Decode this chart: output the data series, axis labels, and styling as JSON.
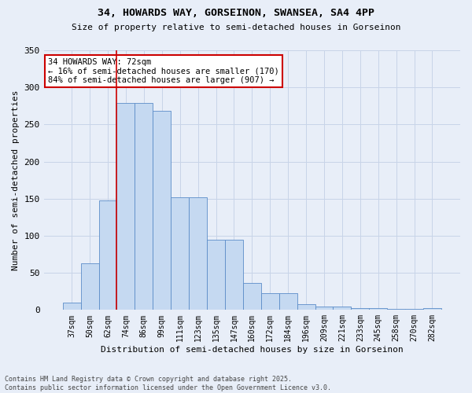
{
  "title1": "34, HOWARDS WAY, GORSEINON, SWANSEA, SA4 4PP",
  "title2": "Size of property relative to semi-detached houses in Gorseinon",
  "xlabel": "Distribution of semi-detached houses by size in Gorseinon",
  "ylabel": "Number of semi-detached properties",
  "categories": [
    "37sqm",
    "50sqm",
    "62sqm",
    "74sqm",
    "86sqm",
    "99sqm",
    "111sqm",
    "123sqm",
    "135sqm",
    "147sqm",
    "160sqm",
    "172sqm",
    "184sqm",
    "196sqm",
    "209sqm",
    "221sqm",
    "233sqm",
    "245sqm",
    "258sqm",
    "270sqm",
    "282sqm"
  ],
  "values": [
    10,
    63,
    148,
    279,
    279,
    268,
    152,
    152,
    95,
    95,
    36,
    23,
    23,
    8,
    5,
    5,
    3,
    3,
    1,
    1,
    2
  ],
  "bar_color": "#c5d9f1",
  "bar_edge_color": "#5b8cc8",
  "grid_color": "#c8d4e8",
  "background_color": "#e8eef8",
  "vline_color": "#cc0000",
  "vline_pos": 2.5,
  "annotation_title": "34 HOWARDS WAY: 72sqm",
  "annotation_line1": "← 16% of semi-detached houses are smaller (170)",
  "annotation_line2": "84% of semi-detached houses are larger (907) →",
  "annotation_box_color": "#ffffff",
  "annotation_box_edge": "#cc0000",
  "footer1": "Contains HM Land Registry data © Crown copyright and database right 2025.",
  "footer2": "Contains public sector information licensed under the Open Government Licence v3.0.",
  "ylim_max": 350,
  "yticks": [
    0,
    50,
    100,
    150,
    200,
    250,
    300,
    350
  ]
}
